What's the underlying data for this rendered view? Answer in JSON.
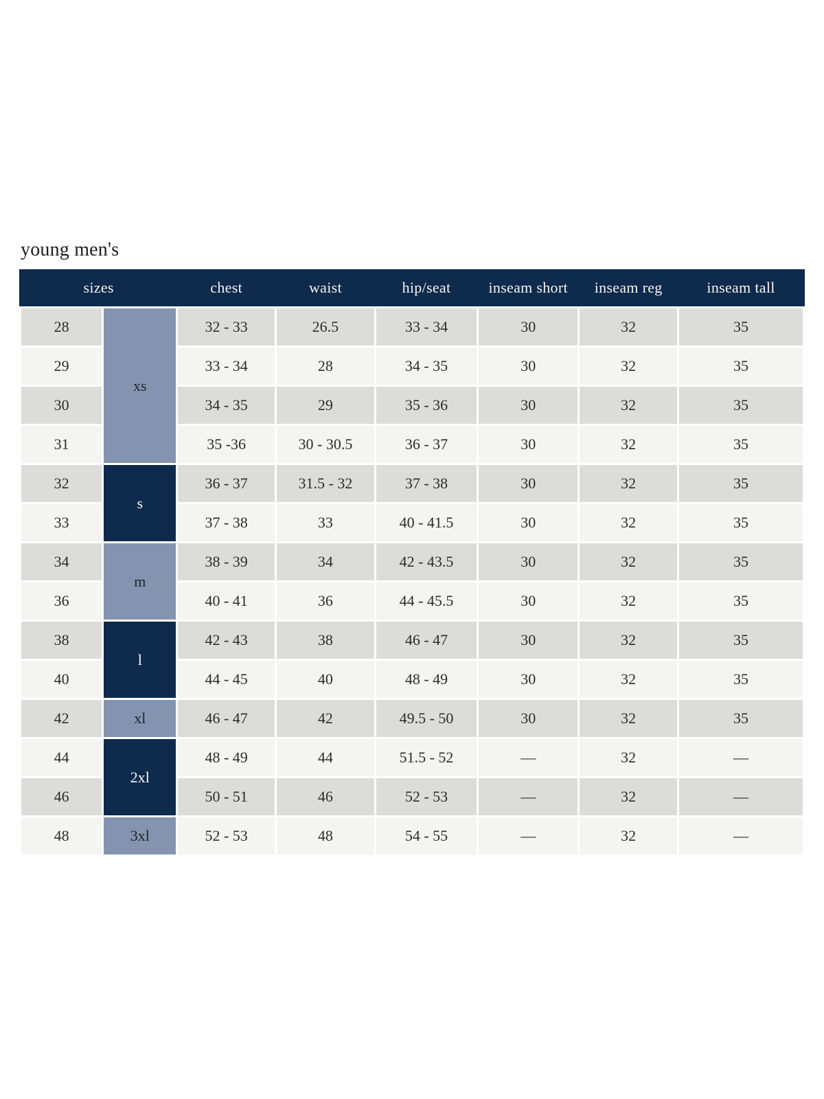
{
  "title": "young men's",
  "colors": {
    "header_bg": "#0e2a4c",
    "header_text": "#f5f4f0",
    "group_dark_bg": "#0e2a4c",
    "group_dark_text": "#f8f8f6",
    "group_light_bg": "#8494b0",
    "group_light_text": "#20242e",
    "row_shaded_bg": "#dcdcdb",
    "row_plain_bg": "#f4f4f3",
    "cell_text": "#2b2b2b",
    "title_text": "#1c1c1c"
  },
  "table": {
    "headers": [
      {
        "label": "sizes",
        "span": 2
      },
      {
        "label": "chest"
      },
      {
        "label": "waist"
      },
      {
        "label": "hip/seat"
      },
      {
        "label": "inseam short"
      },
      {
        "label": "inseam reg"
      },
      {
        "label": "inseam tall"
      }
    ],
    "size_groups": [
      {
        "label": "xs",
        "tone": "light",
        "rowspan": 4
      },
      {
        "label": "s",
        "tone": "dark",
        "rowspan": 2
      },
      {
        "label": "m",
        "tone": "light",
        "rowspan": 2
      },
      {
        "label": "l",
        "tone": "dark",
        "rowspan": 2
      },
      {
        "label": "xl",
        "tone": "light",
        "rowspan": 1
      },
      {
        "label": "2xl",
        "tone": "dark",
        "rowspan": 2
      },
      {
        "label": "3xl",
        "tone": "light",
        "rowspan": 1
      }
    ],
    "rows": [
      {
        "size": "28",
        "chest": "32 - 33",
        "waist": "26.5",
        "hip_seat": "33 - 34",
        "inseam_short": "30",
        "inseam_reg": "32",
        "inseam_tall": "35"
      },
      {
        "size": "29",
        "chest": "33 - 34",
        "waist": "28",
        "hip_seat": "34 - 35",
        "inseam_short": "30",
        "inseam_reg": "32",
        "inseam_tall": "35"
      },
      {
        "size": "30",
        "chest": "34 - 35",
        "waist": "29",
        "hip_seat": "35 - 36",
        "inseam_short": "30",
        "inseam_reg": "32",
        "inseam_tall": "35"
      },
      {
        "size": "31",
        "chest": "35 -36",
        "waist": "30 - 30.5",
        "hip_seat": "36 - 37",
        "inseam_short": "30",
        "inseam_reg": "32",
        "inseam_tall": "35"
      },
      {
        "size": "32",
        "chest": "36 - 37",
        "waist": "31.5 - 32",
        "hip_seat": "37 - 38",
        "inseam_short": "30",
        "inseam_reg": "32",
        "inseam_tall": "35"
      },
      {
        "size": "33",
        "chest": "37 - 38",
        "waist": "33",
        "hip_seat": "40 - 41.5",
        "inseam_short": "30",
        "inseam_reg": "32",
        "inseam_tall": "35"
      },
      {
        "size": "34",
        "chest": "38 - 39",
        "waist": "34",
        "hip_seat": "42 - 43.5",
        "inseam_short": "30",
        "inseam_reg": "32",
        "inseam_tall": "35"
      },
      {
        "size": "36",
        "chest": "40 - 41",
        "waist": "36",
        "hip_seat": "44 - 45.5",
        "inseam_short": "30",
        "inseam_reg": "32",
        "inseam_tall": "35"
      },
      {
        "size": "38",
        "chest": "42 - 43",
        "waist": "38",
        "hip_seat": "46 - 47",
        "inseam_short": "30",
        "inseam_reg": "32",
        "inseam_tall": "35"
      },
      {
        "size": "40",
        "chest": "44 - 45",
        "waist": "40",
        "hip_seat": "48 - 49",
        "inseam_short": "30",
        "inseam_reg": "32",
        "inseam_tall": "35"
      },
      {
        "size": "42",
        "chest": "46 - 47",
        "waist": "42",
        "hip_seat": "49.5 - 50",
        "inseam_short": "30",
        "inseam_reg": "32",
        "inseam_tall": "35"
      },
      {
        "size": "44",
        "chest": "48 - 49",
        "waist": "44",
        "hip_seat": "51.5 - 52",
        "inseam_short": "—",
        "inseam_reg": "32",
        "inseam_tall": "—"
      },
      {
        "size": "46",
        "chest": "50 - 51",
        "waist": "46",
        "hip_seat": "52 - 53",
        "inseam_short": "—",
        "inseam_reg": "32",
        "inseam_tall": "—"
      },
      {
        "size": "48",
        "chest": "52 - 53",
        "waist": "48",
        "hip_seat": "54 - 55",
        "inseam_short": "—",
        "inseam_reg": "32",
        "inseam_tall": "—"
      }
    ]
  }
}
